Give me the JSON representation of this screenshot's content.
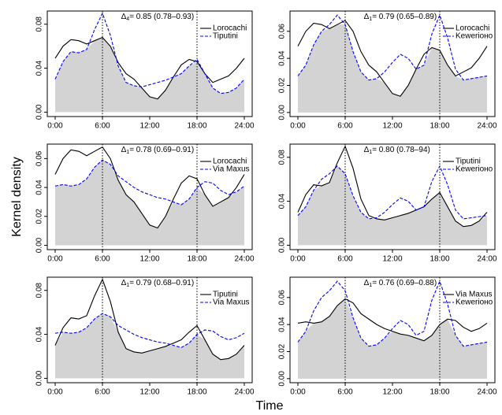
{
  "page": {
    "ylabel": "Kernel density",
    "xlabel": "Time"
  },
  "chart_data": [
    {
      "type": "line",
      "legend": "top-right",
      "vlines": [
        6,
        18
      ],
      "fill_color": "#d3d3d3",
      "annotation": {
        "symbol": "Δ",
        "subscript": "4",
        "text": "= 0.85 (0.78–0.93)"
      },
      "x": [
        0,
        1,
        2,
        3,
        4,
        5,
        6,
        7,
        8,
        9,
        10,
        11,
        12,
        13,
        14,
        15,
        16,
        17,
        18,
        19,
        20,
        21,
        22,
        23,
        24
      ],
      "xlim": [
        -1,
        25
      ],
      "ylim": [
        -0.004,
        0.092
      ],
      "xticks": [
        {
          "value": 0,
          "label": "0:00"
        },
        {
          "value": 6,
          "label": "6:00"
        },
        {
          "value": 12,
          "label": "12:00"
        },
        {
          "value": 18,
          "label": "18:00"
        },
        {
          "value": 24,
          "label": "24:00"
        }
      ],
      "yticks": [
        {
          "value": 0,
          "label": "0.00"
        },
        0.04,
        0.08
      ],
      "series": [
        {
          "name": "Lorocachi",
          "color": "#000000",
          "dash": false,
          "values": [
            0.049,
            0.06,
            0.066,
            0.065,
            0.062,
            0.065,
            0.068,
            0.06,
            0.045,
            0.035,
            0.03,
            0.022,
            0.014,
            0.012,
            0.02,
            0.032,
            0.043,
            0.048,
            0.046,
            0.035,
            0.027,
            0.03,
            0.033,
            0.04,
            0.049
          ]
        },
        {
          "name": "Tiputini",
          "color": "#0000ff",
          "dash": true,
          "values": [
            0.03,
            0.046,
            0.055,
            0.054,
            0.057,
            0.075,
            0.09,
            0.07,
            0.042,
            0.027,
            0.024,
            0.023,
            0.025,
            0.027,
            0.029,
            0.032,
            0.035,
            0.042,
            0.048,
            0.035,
            0.022,
            0.017,
            0.018,
            0.022,
            0.03
          ]
        }
      ]
    },
    {
      "type": "line",
      "legend": "top-right",
      "vlines": [
        6,
        18
      ],
      "fill_color": "#d3d3d3",
      "annotation": {
        "symbol": "Δ",
        "subscript": "1",
        "text": "= 0.79 (0.65–0.89)"
      },
      "x": [
        0,
        1,
        2,
        3,
        4,
        5,
        6,
        7,
        8,
        9,
        10,
        11,
        12,
        13,
        14,
        15,
        16,
        17,
        18,
        19,
        20,
        21,
        22,
        23,
        24
      ],
      "xlim": [
        -1,
        25
      ],
      "ylim": [
        -0.003,
        0.075
      ],
      "xticks": [
        {
          "value": 0,
          "label": "0:00"
        },
        {
          "value": 6,
          "label": "6:00"
        },
        {
          "value": 12,
          "label": "12:00"
        },
        {
          "value": 18,
          "label": "18:00"
        },
        {
          "value": 24,
          "label": "24:00"
        }
      ],
      "yticks": [
        {
          "value": 0,
          "label": "0.00"
        },
        0.02,
        0.04,
        0.06
      ],
      "series": [
        {
          "name": "Lorocachi",
          "color": "#000000",
          "dash": false,
          "values": [
            0.049,
            0.06,
            0.066,
            0.065,
            0.062,
            0.065,
            0.068,
            0.06,
            0.045,
            0.035,
            0.03,
            0.022,
            0.014,
            0.012,
            0.02,
            0.032,
            0.043,
            0.048,
            0.046,
            0.035,
            0.027,
            0.03,
            0.033,
            0.04,
            0.049
          ]
        },
        {
          "name": "Kewerioно",
          "color": "#0000ff",
          "dash": true,
          "values": [
            0.027,
            0.035,
            0.05,
            0.06,
            0.065,
            0.072,
            0.065,
            0.045,
            0.03,
            0.024,
            0.025,
            0.03,
            0.037,
            0.043,
            0.04,
            0.032,
            0.035,
            0.058,
            0.072,
            0.055,
            0.032,
            0.024,
            0.025,
            0.026,
            0.027
          ]
        }
      ]
    },
    {
      "type": "line",
      "legend": "top-right",
      "vlines": [
        6,
        18
      ],
      "fill_color": "#d3d3d3",
      "annotation": {
        "symbol": "Δ",
        "subscript": "1",
        "text": "= 0.78 (0.69–0.91)"
      },
      "x": [
        0,
        1,
        2,
        3,
        4,
        5,
        6,
        7,
        8,
        9,
        10,
        11,
        12,
        13,
        14,
        15,
        16,
        17,
        18,
        19,
        20,
        21,
        22,
        23,
        24
      ],
      "xlim": [
        -1,
        25
      ],
      "ylim": [
        -0.003,
        0.07
      ],
      "xticks": [
        {
          "value": 0,
          "label": "0:00"
        },
        {
          "value": 6,
          "label": "6:00"
        },
        {
          "value": 12,
          "label": "12:00"
        },
        {
          "value": 18,
          "label": "18:00"
        },
        {
          "value": 24,
          "label": "24:00"
        }
      ],
      "yticks": [
        {
          "value": 0,
          "label": "0.00"
        },
        0.02,
        0.04,
        0.06
      ],
      "series": [
        {
          "name": "Lorocachi",
          "color": "#000000",
          "dash": false,
          "values": [
            0.049,
            0.06,
            0.066,
            0.065,
            0.062,
            0.065,
            0.068,
            0.06,
            0.045,
            0.035,
            0.03,
            0.022,
            0.014,
            0.012,
            0.02,
            0.032,
            0.043,
            0.048,
            0.046,
            0.035,
            0.027,
            0.03,
            0.033,
            0.04,
            0.049
          ]
        },
        {
          "name": "Via Maxus",
          "color": "#0000ff",
          "dash": true,
          "values": [
            0.041,
            0.042,
            0.041,
            0.042,
            0.046,
            0.054,
            0.059,
            0.056,
            0.048,
            0.044,
            0.04,
            0.037,
            0.035,
            0.033,
            0.032,
            0.03,
            0.028,
            0.032,
            0.04,
            0.044,
            0.043,
            0.038,
            0.035,
            0.037,
            0.041
          ]
        }
      ]
    },
    {
      "type": "line",
      "legend": "top-right",
      "vlines": [
        6,
        18
      ],
      "fill_color": "#d3d3d3",
      "annotation": {
        "symbol": "Δ",
        "subscript": "1",
        "text": "= 0.80 (0.78–94)"
      },
      "x": [
        0,
        1,
        2,
        3,
        4,
        5,
        6,
        7,
        8,
        9,
        10,
        11,
        12,
        13,
        14,
        15,
        16,
        17,
        18,
        19,
        20,
        21,
        22,
        23,
        24
      ],
      "xlim": [
        -1,
        25
      ],
      "ylim": [
        -0.004,
        0.092
      ],
      "xticks": [
        {
          "value": 0,
          "label": "0:00"
        },
        {
          "value": 6,
          "label": "6:00"
        },
        {
          "value": 12,
          "label": "12:00"
        },
        {
          "value": 18,
          "label": "18:00"
        },
        {
          "value": 24,
          "label": "24:00"
        }
      ],
      "yticks": [
        {
          "value": 0,
          "label": "0.00"
        },
        0.04,
        0.08
      ],
      "series": [
        {
          "name": "Tiputini",
          "color": "#000000",
          "dash": false,
          "values": [
            0.03,
            0.046,
            0.055,
            0.054,
            0.057,
            0.075,
            0.09,
            0.07,
            0.042,
            0.027,
            0.024,
            0.023,
            0.025,
            0.027,
            0.029,
            0.032,
            0.035,
            0.042,
            0.048,
            0.035,
            0.022,
            0.017,
            0.018,
            0.022,
            0.03
          ]
        },
        {
          "name": "Kewerioно",
          "color": "#0000ff",
          "dash": true,
          "values": [
            0.027,
            0.035,
            0.05,
            0.06,
            0.065,
            0.072,
            0.065,
            0.045,
            0.03,
            0.024,
            0.025,
            0.03,
            0.037,
            0.043,
            0.04,
            0.032,
            0.035,
            0.058,
            0.072,
            0.055,
            0.032,
            0.024,
            0.025,
            0.026,
            0.027
          ]
        }
      ]
    },
    {
      "type": "line",
      "legend": "top-right",
      "vlines": [
        6,
        18
      ],
      "fill_color": "#d3d3d3",
      "annotation": {
        "symbol": "Δ",
        "subscript": "1",
        "text": "= 0.79 (0.68–0.91)"
      },
      "x": [
        0,
        1,
        2,
        3,
        4,
        5,
        6,
        7,
        8,
        9,
        10,
        11,
        12,
        13,
        14,
        15,
        16,
        17,
        18,
        19,
        20,
        21,
        22,
        23,
        24
      ],
      "xlim": [
        -1,
        25
      ],
      "ylim": [
        -0.004,
        0.092
      ],
      "xticks": [
        {
          "value": 0,
          "label": "0:00"
        },
        {
          "value": 6,
          "label": "6:00"
        },
        {
          "value": 12,
          "label": "12:00"
        },
        {
          "value": 18,
          "label": "18:00"
        },
        {
          "value": 24,
          "label": "24:00"
        }
      ],
      "yticks": [
        {
          "value": 0,
          "label": "0.00"
        },
        0.04,
        0.08
      ],
      "series": [
        {
          "name": "Tiputini",
          "color": "#000000",
          "dash": false,
          "values": [
            0.03,
            0.046,
            0.055,
            0.054,
            0.057,
            0.075,
            0.09,
            0.07,
            0.042,
            0.027,
            0.024,
            0.023,
            0.025,
            0.027,
            0.029,
            0.032,
            0.035,
            0.042,
            0.048,
            0.035,
            0.022,
            0.017,
            0.018,
            0.022,
            0.03
          ]
        },
        {
          "name": "Via Maxus",
          "color": "#0000ff",
          "dash": true,
          "values": [
            0.041,
            0.042,
            0.041,
            0.042,
            0.046,
            0.054,
            0.059,
            0.056,
            0.048,
            0.044,
            0.04,
            0.037,
            0.035,
            0.033,
            0.032,
            0.03,
            0.028,
            0.032,
            0.04,
            0.044,
            0.043,
            0.038,
            0.035,
            0.037,
            0.041
          ]
        }
      ]
    },
    {
      "type": "line",
      "legend": "top-right",
      "vlines": [
        6,
        18
      ],
      "fill_color": "#d3d3d3",
      "annotation": {
        "symbol": "Δ",
        "subscript": "1",
        "text": "= 0.76 (0.69–0.88)"
      },
      "x": [
        0,
        1,
        2,
        3,
        4,
        5,
        6,
        7,
        8,
        9,
        10,
        11,
        12,
        13,
        14,
        15,
        16,
        17,
        18,
        19,
        20,
        21,
        22,
        23,
        24
      ],
      "xlim": [
        -1,
        25
      ],
      "ylim": [
        -0.003,
        0.075
      ],
      "xticks": [
        {
          "value": 0,
          "label": "0:00"
        },
        {
          "value": 6,
          "label": "6:00"
        },
        {
          "value": 12,
          "label": "12:00"
        },
        {
          "value": 18,
          "label": "18:00"
        },
        {
          "value": 24,
          "label": "24:00"
        }
      ],
      "yticks": [
        {
          "value": 0,
          "label": "0.00"
        },
        0.02,
        0.04,
        0.06
      ],
      "series": [
        {
          "name": "Via Maxus",
          "color": "#000000",
          "dash": false,
          "values": [
            0.041,
            0.042,
            0.041,
            0.042,
            0.046,
            0.054,
            0.059,
            0.056,
            0.048,
            0.044,
            0.04,
            0.037,
            0.035,
            0.033,
            0.032,
            0.03,
            0.028,
            0.032,
            0.04,
            0.044,
            0.043,
            0.038,
            0.035,
            0.037,
            0.041
          ]
        },
        {
          "name": "Kewerioно",
          "color": "#0000ff",
          "dash": true,
          "values": [
            0.027,
            0.035,
            0.05,
            0.06,
            0.065,
            0.072,
            0.065,
            0.045,
            0.03,
            0.024,
            0.025,
            0.03,
            0.037,
            0.043,
            0.04,
            0.032,
            0.035,
            0.058,
            0.072,
            0.055,
            0.032,
            0.024,
            0.025,
            0.026,
            0.027
          ]
        }
      ]
    }
  ]
}
